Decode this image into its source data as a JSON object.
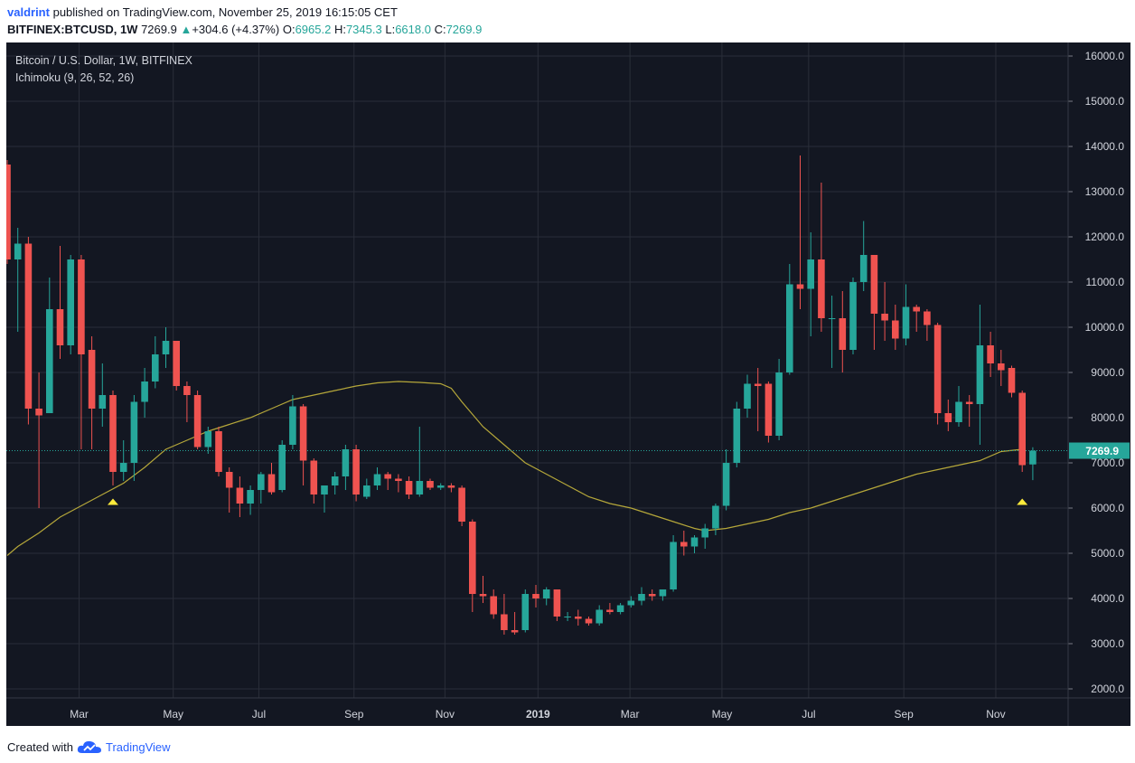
{
  "header": {
    "user": "valdrint",
    "published_text": "published on TradingView.com, November 25, 2019 16:15:05 CET",
    "symbol": "BITFINEX:BTCUSD, 1W",
    "last": "7269.9",
    "change_arrow": "▲",
    "change": "+304.6 (+4.37%)",
    "o_label": "O:",
    "o_value": "6965.2",
    "h_label": "H:",
    "h_value": "7345.3",
    "l_label": "L:",
    "l_value": "6618.0",
    "c_label": "C:",
    "c_value": "7269.9"
  },
  "legend": {
    "title": "Bitcoin / U.S. Dollar, 1W, BITFINEX",
    "indicator": "Ichimoku (9, 26, 52, 26)"
  },
  "footer": {
    "created_with": "Created with",
    "brand": "TradingView",
    "logo_icon": "cloud-icon"
  },
  "colors": {
    "background": "#131722",
    "grid": "#2a2e39",
    "up": "#26a69a",
    "down": "#ef5350",
    "ichimoku_line": "#b5a73a",
    "marker": "#ffeb3b",
    "price_line": "#26a69a"
  },
  "chart_data": {
    "type": "candlestick",
    "title": "Bitcoin / U.S. Dollar, 1W, BITFINEX",
    "ylim": [
      1800,
      16300
    ],
    "y_ticks": [
      "2000.0",
      "3000.0",
      "4000.0",
      "5000.0",
      "6000.0",
      "7000.0",
      "8000.0",
      "9000.0",
      "10000.0",
      "11000.0",
      "12000.0",
      "13000.0",
      "14000.0",
      "15000.0",
      "16000.0"
    ],
    "x_ticks": [
      "Mar",
      "May",
      "Jul",
      "Sep",
      "Nov",
      "2019",
      "Mar",
      "May",
      "Jul",
      "Sep",
      "Nov"
    ],
    "last_price_label": "7269.9",
    "last_price": 7269.9,
    "candles": [
      {
        "o": 13600,
        "h": 13700,
        "c": 11500,
        "l": 11400
      },
      {
        "o": 11500,
        "h": 12200,
        "c": 11850,
        "l": 9900
      },
      {
        "o": 11850,
        "h": 12000,
        "c": 8200,
        "l": 7850
      },
      {
        "o": 8200,
        "h": 9000,
        "c": 8050,
        "l": 6000
      },
      {
        "o": 8100,
        "h": 11100,
        "c": 10400,
        "l": 8100
      },
      {
        "o": 10400,
        "h": 11800,
        "c": 9600,
        "l": 9300
      },
      {
        "o": 9600,
        "h": 11600,
        "c": 11500,
        "l": 9400
      },
      {
        "o": 11500,
        "h": 11600,
        "c": 9400,
        "l": 7300
      },
      {
        "o": 9500,
        "h": 9800,
        "c": 8200,
        "l": 7300
      },
      {
        "o": 8200,
        "h": 9200,
        "c": 8500,
        "l": 7800
      },
      {
        "o": 8500,
        "h": 8600,
        "c": 6800,
        "l": 6500
      },
      {
        "o": 6800,
        "h": 7500,
        "c": 7000,
        "l": 6600
      },
      {
        "o": 7000,
        "h": 8500,
        "c": 8350,
        "l": 6600
      },
      {
        "o": 8350,
        "h": 9100,
        "c": 8800,
        "l": 8000
      },
      {
        "o": 8800,
        "h": 9800,
        "c": 9400,
        "l": 8650
      },
      {
        "o": 9400,
        "h": 10000,
        "c": 9700,
        "l": 9100
      },
      {
        "o": 9700,
        "h": 9700,
        "c": 8700,
        "l": 8600
      },
      {
        "o": 8700,
        "h": 8800,
        "c": 8500,
        "l": 7900
      },
      {
        "o": 8500,
        "h": 8600,
        "c": 7350,
        "l": 7300
      },
      {
        "o": 7350,
        "h": 7800,
        "c": 7700,
        "l": 7200
      },
      {
        "o": 7700,
        "h": 7800,
        "c": 6800,
        "l": 6700
      },
      {
        "o": 6800,
        "h": 6900,
        "c": 6450,
        "l": 5900
      },
      {
        "o": 6450,
        "h": 6700,
        "c": 6100,
        "l": 5800
      },
      {
        "o": 6100,
        "h": 6500,
        "c": 6400,
        "l": 5850
      },
      {
        "o": 6400,
        "h": 6800,
        "c": 6750,
        "l": 6100
      },
      {
        "o": 6750,
        "h": 7000,
        "c": 6350,
        "l": 6300
      },
      {
        "o": 6400,
        "h": 7500,
        "c": 7400,
        "l": 6350
      },
      {
        "o": 7400,
        "h": 8500,
        "c": 8250,
        "l": 7300
      },
      {
        "o": 8250,
        "h": 8300,
        "c": 7050,
        "l": 6500
      },
      {
        "o": 7050,
        "h": 7100,
        "c": 6300,
        "l": 6100
      },
      {
        "o": 6300,
        "h": 6500,
        "c": 6500,
        "l": 5900
      },
      {
        "o": 6500,
        "h": 6800,
        "c": 6700,
        "l": 6300
      },
      {
        "o": 6700,
        "h": 7400,
        "c": 7300,
        "l": 6400
      },
      {
        "o": 7300,
        "h": 7400,
        "c": 6300,
        "l": 6150
      },
      {
        "o": 6250,
        "h": 6650,
        "c": 6500,
        "l": 6200
      },
      {
        "o": 6500,
        "h": 6900,
        "c": 6750,
        "l": 6400
      },
      {
        "o": 6750,
        "h": 6800,
        "c": 6650,
        "l": 6400
      },
      {
        "o": 6650,
        "h": 6750,
        "c": 6600,
        "l": 6350
      },
      {
        "o": 6600,
        "h": 6700,
        "c": 6300,
        "l": 6200
      },
      {
        "o": 6300,
        "h": 7800,
        "c": 6600,
        "l": 6250
      },
      {
        "o": 6600,
        "h": 6650,
        "c": 6450,
        "l": 6400
      },
      {
        "o": 6450,
        "h": 6550,
        "c": 6500,
        "l": 6400
      },
      {
        "o": 6500,
        "h": 6550,
        "c": 6450,
        "l": 6350
      },
      {
        "o": 6450,
        "h": 6500,
        "c": 5700,
        "l": 5600
      },
      {
        "o": 5700,
        "h": 5750,
        "c": 4100,
        "l": 3700
      },
      {
        "o": 4100,
        "h": 4500,
        "c": 4050,
        "l": 3900
      },
      {
        "o": 4050,
        "h": 4200,
        "c": 3650,
        "l": 3550
      },
      {
        "o": 3650,
        "h": 4100,
        "c": 3300,
        "l": 3200
      },
      {
        "o": 3300,
        "h": 3700,
        "c": 3250,
        "l": 3200
      },
      {
        "o": 3300,
        "h": 4200,
        "c": 4100,
        "l": 3250
      },
      {
        "o": 4100,
        "h": 4300,
        "c": 4000,
        "l": 3800
      },
      {
        "o": 4000,
        "h": 4250,
        "c": 4200,
        "l": 3850
      },
      {
        "o": 4200,
        "h": 4200,
        "c": 3600,
        "l": 3500
      },
      {
        "o": 3600,
        "h": 3700,
        "c": 3600,
        "l": 3500
      },
      {
        "o": 3600,
        "h": 3750,
        "c": 3550,
        "l": 3400
      },
      {
        "o": 3550,
        "h": 3600,
        "c": 3450,
        "l": 3400
      },
      {
        "o": 3450,
        "h": 3850,
        "c": 3750,
        "l": 3400
      },
      {
        "o": 3750,
        "h": 3900,
        "c": 3700,
        "l": 3650
      },
      {
        "o": 3700,
        "h": 3900,
        "c": 3850,
        "l": 3650
      },
      {
        "o": 3850,
        "h": 4050,
        "c": 3950,
        "l": 3800
      },
      {
        "o": 3950,
        "h": 4250,
        "c": 4100,
        "l": 3850
      },
      {
        "o": 4100,
        "h": 4200,
        "c": 4050,
        "l": 3950
      },
      {
        "o": 4050,
        "h": 4150,
        "c": 4200,
        "l": 3950
      },
      {
        "o": 4200,
        "h": 5400,
        "c": 5250,
        "l": 4150
      },
      {
        "o": 5250,
        "h": 5500,
        "c": 5150,
        "l": 4950
      },
      {
        "o": 5150,
        "h": 5400,
        "c": 5350,
        "l": 5000
      },
      {
        "o": 5350,
        "h": 5650,
        "c": 5550,
        "l": 5100
      },
      {
        "o": 5550,
        "h": 6100,
        "c": 6050,
        "l": 5400
      },
      {
        "o": 6050,
        "h": 7300,
        "c": 7000,
        "l": 5950
      },
      {
        "o": 7000,
        "h": 8350,
        "c": 8200,
        "l": 6900
      },
      {
        "o": 8200,
        "h": 8950,
        "c": 8750,
        "l": 8000
      },
      {
        "o": 8750,
        "h": 9100,
        "c": 8700,
        "l": 7700
      },
      {
        "o": 8750,
        "h": 8800,
        "c": 7600,
        "l": 7450
      },
      {
        "o": 7600,
        "h": 9300,
        "c": 9000,
        "l": 7500
      },
      {
        "o": 9000,
        "h": 11400,
        "c": 10950,
        "l": 8950
      },
      {
        "o": 10950,
        "h": 13800,
        "c": 10850,
        "l": 10400
      },
      {
        "o": 10850,
        "h": 12100,
        "c": 11500,
        "l": 9800
      },
      {
        "o": 11500,
        "h": 13200,
        "c": 10200,
        "l": 9900
      },
      {
        "o": 10200,
        "h": 10700,
        "c": 10200,
        "l": 9100
      },
      {
        "o": 10200,
        "h": 10800,
        "c": 9500,
        "l": 9000
      },
      {
        "o": 9500,
        "h": 11100,
        "c": 11000,
        "l": 9400
      },
      {
        "o": 11000,
        "h": 12350,
        "c": 11600,
        "l": 10800
      },
      {
        "o": 11600,
        "h": 11600,
        "c": 10300,
        "l": 9500
      },
      {
        "o": 10300,
        "h": 11000,
        "c": 10150,
        "l": 9700
      },
      {
        "o": 10150,
        "h": 10500,
        "c": 9750,
        "l": 9500
      },
      {
        "o": 9750,
        "h": 10950,
        "c": 10450,
        "l": 9600
      },
      {
        "o": 10450,
        "h": 10500,
        "c": 10350,
        "l": 9900
      },
      {
        "o": 10350,
        "h": 10400,
        "c": 10050,
        "l": 9700
      },
      {
        "o": 10050,
        "h": 10100,
        "c": 8100,
        "l": 7850
      },
      {
        "o": 8100,
        "h": 8400,
        "c": 7900,
        "l": 7700
      },
      {
        "o": 7900,
        "h": 8700,
        "c": 8350,
        "l": 7800
      },
      {
        "o": 8350,
        "h": 8500,
        "c": 8300,
        "l": 7800
      },
      {
        "o": 8300,
        "h": 10500,
        "c": 9600,
        "l": 7400
      },
      {
        "o": 9600,
        "h": 9900,
        "c": 9200,
        "l": 8900
      },
      {
        "o": 9200,
        "h": 9500,
        "c": 9050,
        "l": 8700
      },
      {
        "o": 9100,
        "h": 9150,
        "c": 8550,
        "l": 8450
      },
      {
        "o": 8550,
        "h": 8600,
        "c": 6950,
        "l": 6800
      },
      {
        "o": 6965.2,
        "h": 7345.3,
        "c": 7269.9,
        "l": 6618.0
      }
    ],
    "ichimoku_baseline": [
      [
        0,
        4950
      ],
      [
        1,
        5150
      ],
      [
        3,
        5450
      ],
      [
        5,
        5800
      ],
      [
        7,
        6050
      ],
      [
        9,
        6300
      ],
      [
        11,
        6550
      ],
      [
        13,
        6900
      ],
      [
        15,
        7300
      ],
      [
        17,
        7500
      ],
      [
        19,
        7700
      ],
      [
        21,
        7850
      ],
      [
        23,
        8000
      ],
      [
        25,
        8200
      ],
      [
        27,
        8400
      ],
      [
        29,
        8500
      ],
      [
        31,
        8600
      ],
      [
        33,
        8700
      ],
      [
        35,
        8770
      ],
      [
        37,
        8800
      ],
      [
        39,
        8780
      ],
      [
        41,
        8750
      ],
      [
        42,
        8650
      ],
      [
        43,
        8350
      ],
      [
        45,
        7800
      ],
      [
        47,
        7400
      ],
      [
        49,
        7000
      ],
      [
        51,
        6750
      ],
      [
        53,
        6500
      ],
      [
        55,
        6250
      ],
      [
        57,
        6100
      ],
      [
        59,
        6000
      ],
      [
        61,
        5850
      ],
      [
        63,
        5700
      ],
      [
        65,
        5550
      ],
      [
        66,
        5500
      ],
      [
        68,
        5550
      ],
      [
        70,
        5650
      ],
      [
        72,
        5750
      ],
      [
        74,
        5900
      ],
      [
        76,
        6000
      ],
      [
        78,
        6150
      ],
      [
        80,
        6300
      ],
      [
        82,
        6450
      ],
      [
        84,
        6600
      ],
      [
        86,
        6750
      ],
      [
        88,
        6850
      ],
      [
        90,
        6950
      ],
      [
        92,
        7050
      ],
      [
        94,
        7250
      ],
      [
        96,
        7300
      ]
    ],
    "markers": [
      {
        "x_index": 10,
        "y": 6150
      },
      {
        "x_index": 96,
        "y": 6150
      }
    ],
    "grid": true
  }
}
